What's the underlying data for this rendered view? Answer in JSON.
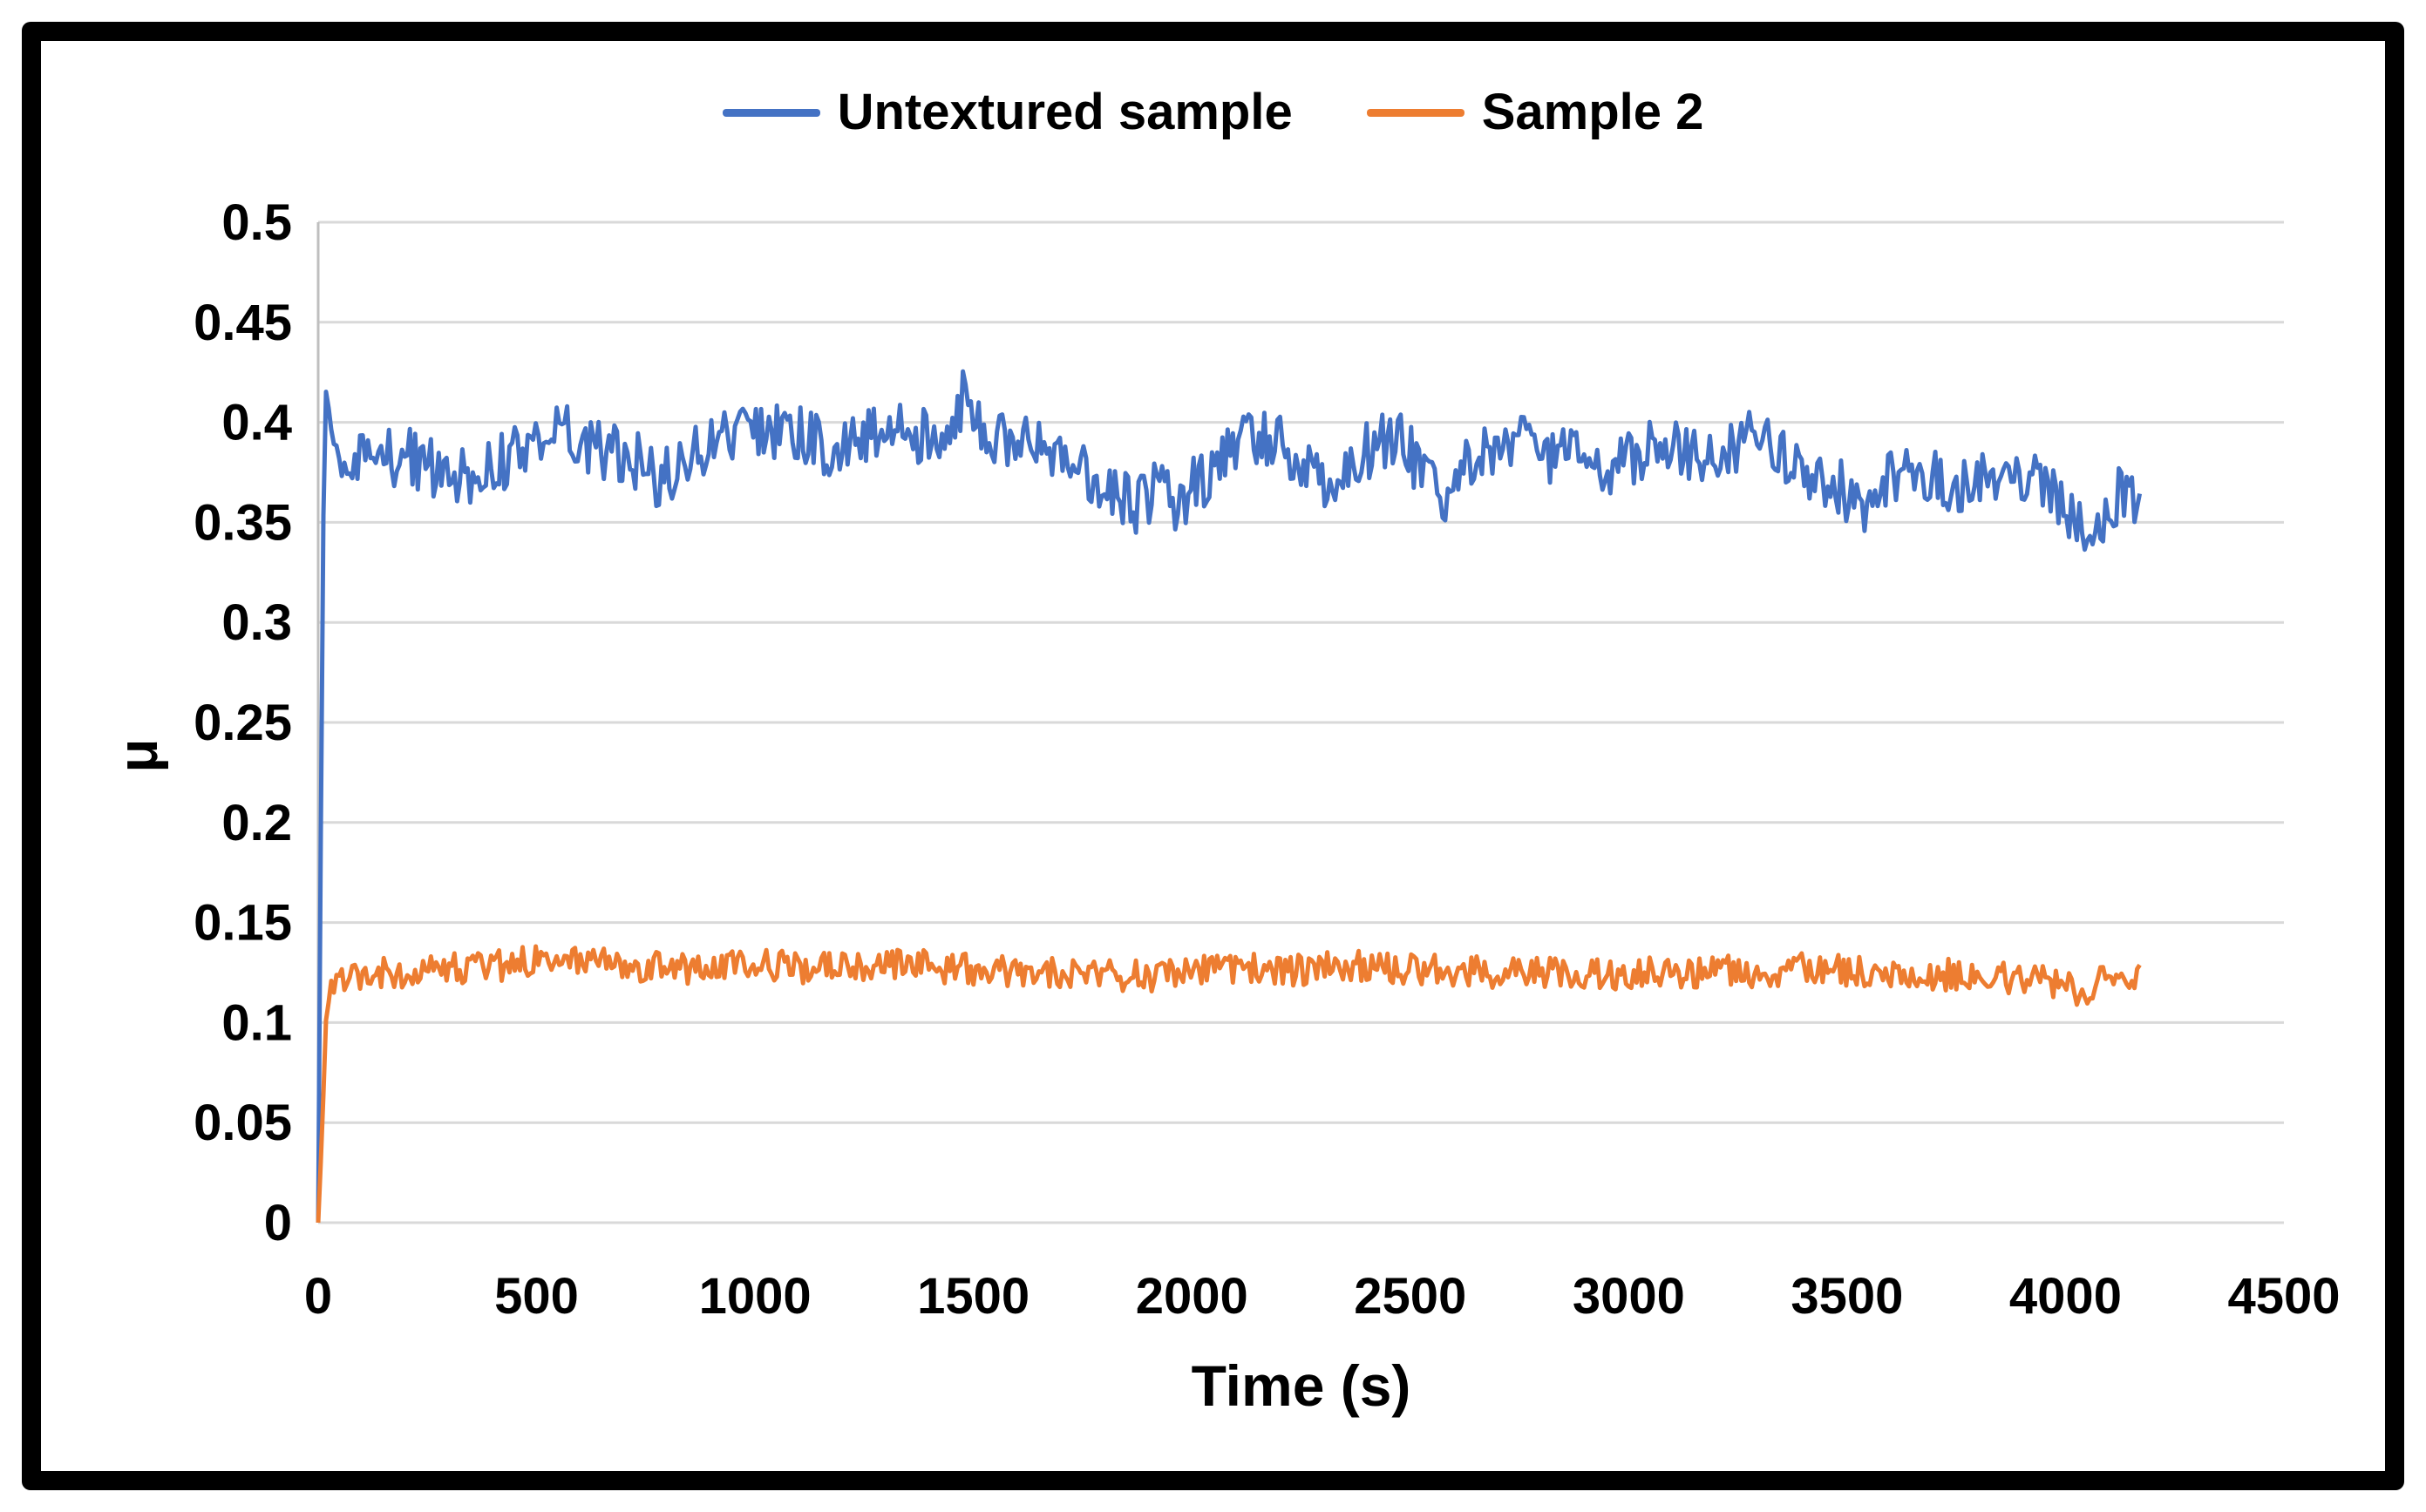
{
  "figure": {
    "frame_color": "#000000",
    "background_color": "#ffffff"
  },
  "chart_data": {
    "type": "line",
    "title": "",
    "xlabel": "Time (s)",
    "ylabel": "μ",
    "xlim": [
      0,
      4500
    ],
    "ylim": [
      0,
      0.5
    ],
    "grid": "horizontal",
    "gridline_color": "#d9d9d9",
    "axis_line_color": "#bfbfbf",
    "text_color": "#000000",
    "legend_position": "top-center",
    "x_ticks": [
      {
        "v": 0,
        "label": "0"
      },
      {
        "v": 500,
        "label": "500"
      },
      {
        "v": 1000,
        "label": "1000"
      },
      {
        "v": 1500,
        "label": "1500"
      },
      {
        "v": 2000,
        "label": "2000"
      },
      {
        "v": 2500,
        "label": "2500"
      },
      {
        "v": 3000,
        "label": "3000"
      },
      {
        "v": 3500,
        "label": "3500"
      },
      {
        "v": 4000,
        "label": "4000"
      },
      {
        "v": 4500,
        "label": "4500"
      }
    ],
    "y_ticks": [
      {
        "v": 0,
        "label": "0"
      },
      {
        "v": 0.05,
        "label": "0.05"
      },
      {
        "v": 0.1,
        "label": "0.1"
      },
      {
        "v": 0.15,
        "label": "0.15"
      },
      {
        "v": 0.2,
        "label": "0.2"
      },
      {
        "v": 0.25,
        "label": "0.25"
      },
      {
        "v": 0.3,
        "label": "0.3"
      },
      {
        "v": 0.35,
        "label": "0.35"
      },
      {
        "v": 0.4,
        "label": "0.4"
      },
      {
        "v": 0.45,
        "label": "0.45"
      },
      {
        "v": 0.5,
        "label": "0.5"
      }
    ],
    "series": [
      {
        "name": "Untextured sample",
        "color": "#4472c4",
        "noise_pp": 0.03,
        "x_end": 4170,
        "mean_points": [
          [
            0,
            0
          ],
          [
            10,
            0.32
          ],
          [
            16,
            0.42
          ],
          [
            28,
            0.4
          ],
          [
            45,
            0.385
          ],
          [
            80,
            0.378
          ],
          [
            140,
            0.382
          ],
          [
            200,
            0.384
          ],
          [
            260,
            0.378
          ],
          [
            320,
            0.371
          ],
          [
            380,
            0.376
          ],
          [
            440,
            0.383
          ],
          [
            500,
            0.393
          ],
          [
            545,
            0.398
          ],
          [
            590,
            0.392
          ],
          [
            650,
            0.386
          ],
          [
            720,
            0.382
          ],
          [
            780,
            0.372
          ],
          [
            840,
            0.381
          ],
          [
            900,
            0.39
          ],
          [
            960,
            0.394
          ],
          [
            1030,
            0.397
          ],
          [
            1100,
            0.394
          ],
          [
            1170,
            0.387
          ],
          [
            1240,
            0.391
          ],
          [
            1310,
            0.399
          ],
          [
            1380,
            0.394
          ],
          [
            1440,
            0.399
          ],
          [
            1487,
            0.417
          ],
          [
            1520,
            0.398
          ],
          [
            1580,
            0.391
          ],
          [
            1640,
            0.394
          ],
          [
            1700,
            0.386
          ],
          [
            1760,
            0.374
          ],
          [
            1820,
            0.366
          ],
          [
            1870,
            0.358
          ],
          [
            1920,
            0.368
          ],
          [
            1970,
            0.36
          ],
          [
            2020,
            0.371
          ],
          [
            2080,
            0.385
          ],
          [
            2140,
            0.392
          ],
          [
            2200,
            0.393
          ],
          [
            2250,
            0.381
          ],
          [
            2300,
            0.369
          ],
          [
            2360,
            0.379
          ],
          [
            2420,
            0.389
          ],
          [
            2480,
            0.391
          ],
          [
            2530,
            0.373
          ],
          [
            2580,
            0.364
          ],
          [
            2640,
            0.38
          ],
          [
            2700,
            0.387
          ],
          [
            2760,
            0.39
          ],
          [
            2830,
            0.384
          ],
          [
            2900,
            0.38
          ],
          [
            2950,
            0.373
          ],
          [
            3010,
            0.384
          ],
          [
            3080,
            0.389
          ],
          [
            3150,
            0.382
          ],
          [
            3220,
            0.386
          ],
          [
            3290,
            0.392
          ],
          [
            3350,
            0.383
          ],
          [
            3420,
            0.375
          ],
          [
            3490,
            0.366
          ],
          [
            3530,
            0.358
          ],
          [
            3580,
            0.37
          ],
          [
            3640,
            0.378
          ],
          [
            3700,
            0.373
          ],
          [
            3760,
            0.368
          ],
          [
            3820,
            0.373
          ],
          [
            3880,
            0.377
          ],
          [
            3940,
            0.37
          ],
          [
            3990,
            0.359
          ],
          [
            4040,
            0.342
          ],
          [
            4080,
            0.35
          ],
          [
            4120,
            0.364
          ],
          [
            4170,
            0.36
          ]
        ]
      },
      {
        "name": "Sample 2",
        "color": "#ed7d31",
        "noise_pp": 0.016,
        "x_end": 4170,
        "mean_points": [
          [
            0,
            0
          ],
          [
            8,
            0.04
          ],
          [
            18,
            0.1
          ],
          [
            30,
            0.118
          ],
          [
            60,
            0.123
          ],
          [
            120,
            0.126
          ],
          [
            200,
            0.125
          ],
          [
            280,
            0.127
          ],
          [
            360,
            0.128
          ],
          [
            440,
            0.129
          ],
          [
            520,
            0.131
          ],
          [
            600,
            0.132
          ],
          [
            680,
            0.13
          ],
          [
            760,
            0.128
          ],
          [
            840,
            0.127
          ],
          [
            920,
            0.128
          ],
          [
            1000,
            0.129
          ],
          [
            1080,
            0.128
          ],
          [
            1160,
            0.127
          ],
          [
            1240,
            0.128
          ],
          [
            1320,
            0.129
          ],
          [
            1400,
            0.128
          ],
          [
            1480,
            0.127
          ],
          [
            1560,
            0.126
          ],
          [
            1640,
            0.126
          ],
          [
            1720,
            0.125
          ],
          [
            1800,
            0.124
          ],
          [
            1880,
            0.123
          ],
          [
            1960,
            0.124
          ],
          [
            2040,
            0.126
          ],
          [
            2120,
            0.127
          ],
          [
            2200,
            0.126
          ],
          [
            2280,
            0.127
          ],
          [
            2360,
            0.128
          ],
          [
            2440,
            0.128
          ],
          [
            2520,
            0.127
          ],
          [
            2600,
            0.126
          ],
          [
            2680,
            0.125
          ],
          [
            2760,
            0.126
          ],
          [
            2840,
            0.125
          ],
          [
            2920,
            0.124
          ],
          [
            3000,
            0.125
          ],
          [
            3080,
            0.126
          ],
          [
            3160,
            0.125
          ],
          [
            3240,
            0.126
          ],
          [
            3320,
            0.125
          ],
          [
            3400,
            0.127
          ],
          [
            3480,
            0.126
          ],
          [
            3560,
            0.124
          ],
          [
            3640,
            0.125
          ],
          [
            3720,
            0.124
          ],
          [
            3800,
            0.123
          ],
          [
            3880,
            0.122
          ],
          [
            3940,
            0.121
          ],
          [
            4000,
            0.118
          ],
          [
            4040,
            0.116
          ],
          [
            4080,
            0.121
          ],
          [
            4120,
            0.123
          ],
          [
            4170,
            0.122
          ]
        ]
      }
    ]
  }
}
